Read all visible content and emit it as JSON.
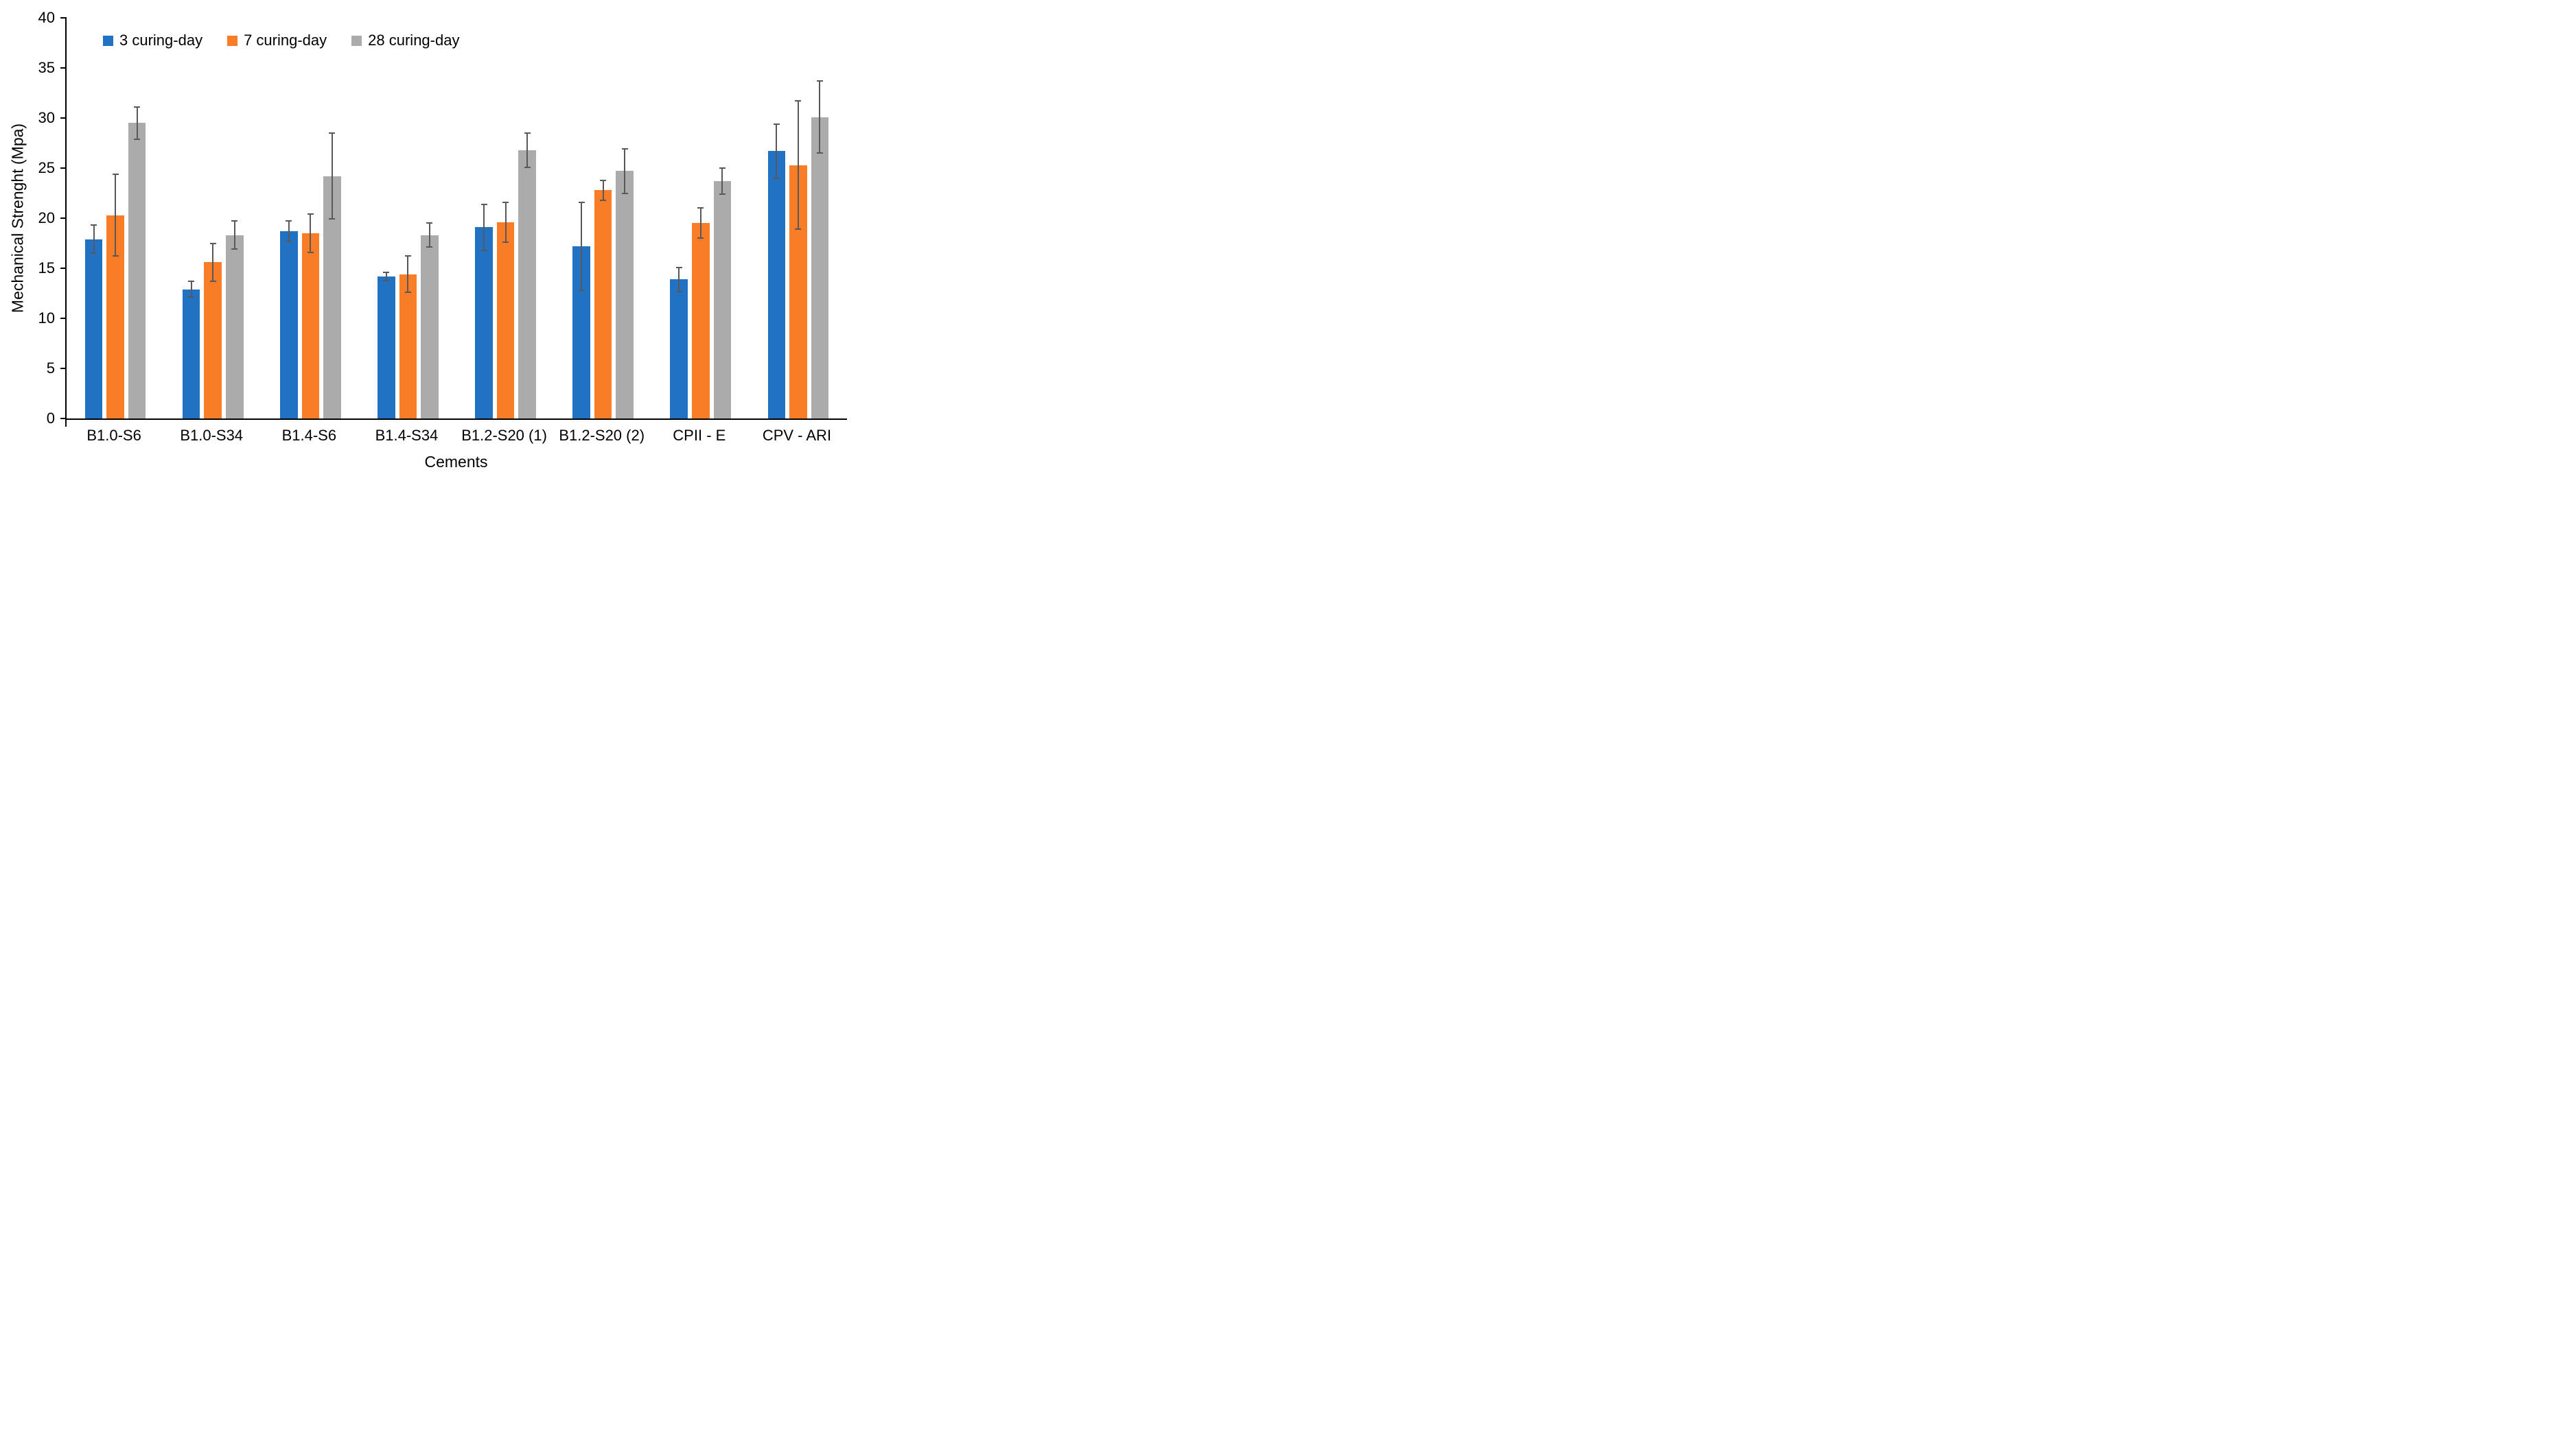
{
  "chart_data": {
    "type": "bar",
    "title": "",
    "xlabel": "Cements",
    "ylabel": "Mechanical Strenght (Mpa)",
    "ylim": [
      0,
      40
    ],
    "yticks": [
      0,
      5,
      10,
      15,
      20,
      25,
      30,
      35,
      40
    ],
    "grid": false,
    "legend_position": "top-left",
    "categories": [
      "B1.0-S6",
      "B1.0-S34",
      "B1.4-S6",
      "B1.4-S34",
      "B1.2-S20 (1)",
      "B1.2-S20 (2)",
      "CPII - E",
      "CPV - ARI"
    ],
    "series": [
      {
        "name": "3 curing-day",
        "color": "#2272C3",
        "values": [
          17.9,
          12.9,
          18.7,
          14.2,
          19.1,
          17.2,
          13.9,
          26.7
        ],
        "errors": [
          1.4,
          0.8,
          1.0,
          0.4,
          2.3,
          4.4,
          1.2,
          2.7
        ]
      },
      {
        "name": "7 curing-day",
        "color": "#F97D27",
        "values": [
          20.3,
          15.6,
          18.5,
          14.4,
          19.6,
          22.8,
          19.5,
          25.3
        ],
        "errors": [
          4.1,
          1.9,
          1.9,
          1.8,
          2.0,
          1.0,
          1.5,
          6.4
        ]
      },
      {
        "name": "28 curing-day",
        "color": "#ABABAB",
        "values": [
          29.5,
          18.3,
          24.2,
          18.3,
          26.8,
          24.7,
          23.7,
          30.1
        ],
        "errors": [
          1.6,
          1.4,
          4.3,
          1.2,
          1.7,
          2.2,
          1.3,
          3.6
        ]
      }
    ],
    "error_bar_color": "#58595B",
    "axis_color": "#000000"
  }
}
